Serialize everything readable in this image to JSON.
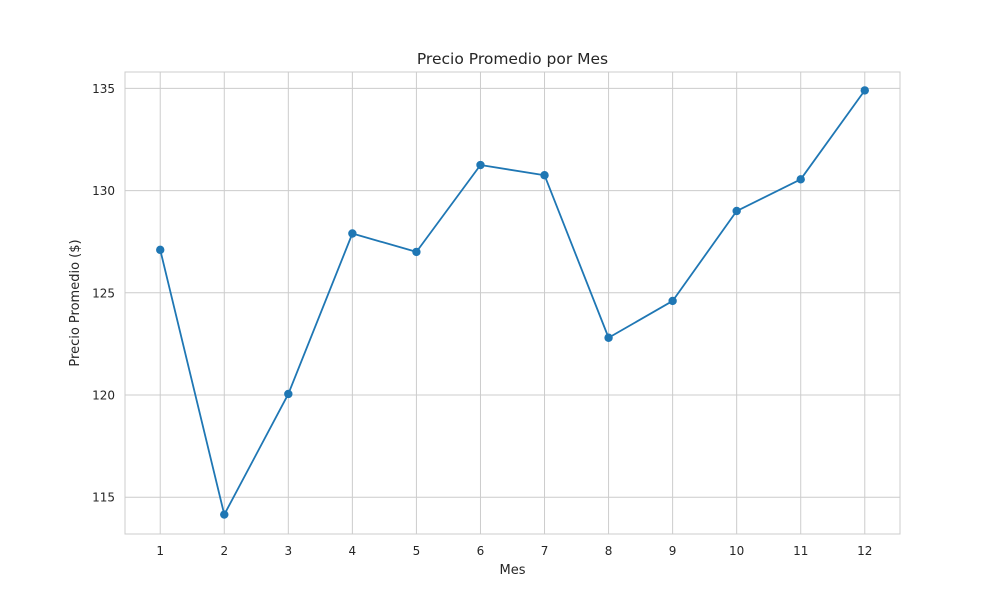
{
  "chart_data": {
    "type": "line",
    "title": "Precio Promedio por Mes",
    "xlabel": "Mes",
    "ylabel": "Precio Promedio ($)",
    "x": [
      1,
      2,
      3,
      4,
      5,
      6,
      7,
      8,
      9,
      10,
      11,
      12
    ],
    "series": [
      {
        "values": [
          127.1,
          114.15,
          120.05,
          127.9,
          127.0,
          131.25,
          130.75,
          122.8,
          124.6,
          129.0,
          130.55,
          134.9
        ]
      }
    ],
    "xticks": [
      1,
      2,
      3,
      4,
      5,
      6,
      7,
      8,
      9,
      10,
      11,
      12
    ],
    "yticks": [
      115,
      120,
      125,
      130,
      135
    ],
    "xlim": [
      0.45,
      12.55
    ],
    "ylim": [
      113.2,
      135.8
    ],
    "grid": true,
    "colors": {
      "line": "#1f77b4",
      "grid": "#cccccc",
      "frame": "#cccccc",
      "text": "#262626"
    }
  }
}
